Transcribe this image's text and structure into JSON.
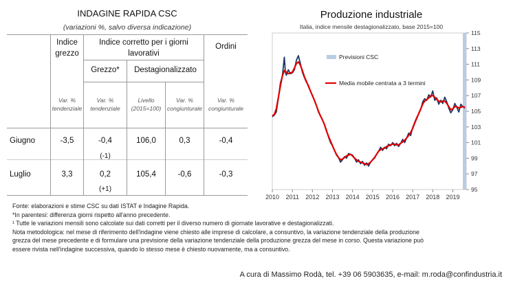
{
  "table": {
    "title": "INDAGINE RAPIDA CSC",
    "subtitle": "(variazioni %, salvo diversa indicazione)",
    "col_indice_grezzo": "Indice grezzo",
    "col_indice_corretto": "Indice corretto per i giorni lavorativi",
    "col_ordini": "Ordini",
    "sub_grezzo": "Grezzo*",
    "sub_destag": "Destagionalizzato",
    "labels": [
      "Var. % tendenziale",
      "Var. % tendenziale",
      "Livello (2015=100)",
      "Var. % congiunturale",
      "Var. % congiunturale"
    ],
    "rows": [
      {
        "month": "Giugno",
        "values": [
          "-3,5",
          "-0,4",
          "106,0",
          "0,3",
          "-0,4"
        ],
        "diff": "(-1)"
      },
      {
        "month": "Luglio",
        "values": [
          "3,3",
          "0,2",
          "105,4",
          "-0,6",
          "-0,3"
        ],
        "diff": "(+1)"
      }
    ]
  },
  "notes": [
    "Fonte: elaborazioni e stime CSC su dati ISTAT e Indagine Rapida.",
    "*In parentesi: differenza giorni rispetto all'anno precedente.",
    "¹ Tutte le variazioni mensili sono calcolate sui dati corretti per il diverso numero di giornate lavorative e destagionalizzati.",
    "Nota metodologica: nel mese di riferimento dell'indagine viene chiesto alle imprese di calcolare, a consuntivo, la variazione tendenziale della produzione",
    "grezza del mese precedente e di formulare una previsione della variazione tendenziale della produzione grezza del mese in corso. Questa variazione può",
    "essere rivista nell'indagine successiva, quando lo stesso mese è chiesto nuovamente, ma a consuntivo."
  ],
  "credit": "A cura di Massimo Rodà, tel. +39 06 5903635, e-mail: m.roda@confindustria.it",
  "chart_data": {
    "type": "line",
    "title": "Produzione industriale",
    "subtitle": "Italia, indice mensile destagionalizzato, base 2015=100",
    "xlabel": "",
    "ylabel": "",
    "x_ticks": [
      "2010",
      "2011",
      "2012",
      "2013",
      "2014",
      "2015",
      "2016",
      "2017",
      "2018",
      "2019"
    ],
    "y_ticks": [
      "95",
      "97",
      "99",
      "101",
      "103",
      "105",
      "107",
      "109",
      "111",
      "113",
      "115"
    ],
    "ylim": [
      95,
      115
    ],
    "xlim": [
      2010.0,
      2019.67
    ],
    "legend": [
      "Previsioni CSC",
      "Media mobile centrata a 3 termini"
    ],
    "colors": {
      "index": "#1f3864",
      "moving_average": "#e00000",
      "forecast": "#b8cce4"
    },
    "forecast_period": [
      2019.5,
      2019.67
    ],
    "series": [
      {
        "name": "Indice",
        "anchors": [
          [
            2010.0,
            104.3
          ],
          [
            2010.1,
            104.5
          ],
          [
            2010.2,
            104.9
          ],
          [
            2010.3,
            106.6
          ],
          [
            2010.4,
            108.6
          ],
          [
            2010.5,
            109.5
          ],
          [
            2010.6,
            111.9
          ],
          [
            2010.65,
            110.0
          ],
          [
            2010.7,
            109.6
          ],
          [
            2010.8,
            110.3
          ],
          [
            2010.9,
            109.8
          ],
          [
            2011.0,
            109.9
          ],
          [
            2011.1,
            110.3
          ],
          [
            2011.2,
            111.5
          ],
          [
            2011.3,
            112.1
          ],
          [
            2011.4,
            111.1
          ],
          [
            2011.5,
            110.0
          ],
          [
            2011.6,
            109.3
          ],
          [
            2011.7,
            108.7
          ],
          [
            2011.8,
            108.3
          ],
          [
            2011.9,
            107.6
          ],
          [
            2012.0,
            107.0
          ],
          [
            2012.1,
            106.4
          ],
          [
            2012.2,
            105.7
          ],
          [
            2012.3,
            104.9
          ],
          [
            2012.4,
            104.4
          ],
          [
            2012.5,
            103.9
          ],
          [
            2012.6,
            103.3
          ],
          [
            2012.7,
            102.6
          ],
          [
            2012.8,
            101.7
          ],
          [
            2012.9,
            101.0
          ],
          [
            2013.0,
            100.6
          ],
          [
            2013.1,
            100.0
          ],
          [
            2013.2,
            99.4
          ],
          [
            2013.3,
            99.1
          ],
          [
            2013.4,
            98.5
          ],
          [
            2013.5,
            98.8
          ],
          [
            2013.6,
            99.2
          ],
          [
            2013.7,
            99.0
          ],
          [
            2013.8,
            99.6
          ],
          [
            2013.9,
            99.5
          ],
          [
            2014.0,
            99.4
          ],
          [
            2014.1,
            99.0
          ],
          [
            2014.2,
            98.5
          ],
          [
            2014.3,
            98.8
          ],
          [
            2014.4,
            98.3
          ],
          [
            2014.5,
            98.6
          ],
          [
            2014.6,
            98.1
          ],
          [
            2014.7,
            98.4
          ],
          [
            2014.8,
            98.0
          ],
          [
            2014.9,
            98.5
          ],
          [
            2015.0,
            98.8
          ],
          [
            2015.1,
            99.0
          ],
          [
            2015.2,
            99.5
          ],
          [
            2015.3,
            99.9
          ],
          [
            2015.4,
            100.4
          ],
          [
            2015.5,
            100.0
          ],
          [
            2015.6,
            100.4
          ],
          [
            2015.7,
            100.2
          ],
          [
            2015.8,
            100.8
          ],
          [
            2015.9,
            100.6
          ],
          [
            2016.0,
            101.0
          ],
          [
            2016.1,
            100.6
          ],
          [
            2016.2,
            100.9
          ],
          [
            2016.3,
            100.5
          ],
          [
            2016.4,
            100.9
          ],
          [
            2016.5,
            101.4
          ],
          [
            2016.6,
            101.0
          ],
          [
            2016.7,
            101.6
          ],
          [
            2016.8,
            102.2
          ],
          [
            2016.9,
            101.9
          ],
          [
            2017.0,
            102.9
          ],
          [
            2017.1,
            103.6
          ],
          [
            2017.2,
            104.2
          ],
          [
            2017.3,
            104.7
          ],
          [
            2017.4,
            105.2
          ],
          [
            2017.5,
            106.2
          ],
          [
            2017.6,
            106.6
          ],
          [
            2017.7,
            106.4
          ],
          [
            2017.8,
            107.1
          ],
          [
            2017.9,
            106.8
          ],
          [
            2018.0,
            107.6
          ],
          [
            2018.1,
            106.4
          ],
          [
            2018.2,
            106.7
          ],
          [
            2018.3,
            105.9
          ],
          [
            2018.4,
            106.4
          ],
          [
            2018.5,
            106.0
          ],
          [
            2018.6,
            106.8
          ],
          [
            2018.7,
            106.2
          ],
          [
            2018.8,
            105.4
          ],
          [
            2018.9,
            104.8
          ],
          [
            2019.0,
            105.2
          ],
          [
            2019.1,
            106.0
          ],
          [
            2019.2,
            105.5
          ],
          [
            2019.3,
            104.9
          ],
          [
            2019.4,
            105.9
          ],
          [
            2019.5,
            105.6
          ],
          [
            2019.6,
            105.4
          ]
        ]
      },
      {
        "name": "Media mobile centrata a 3 termini",
        "anchors": [
          [
            2010.0,
            104.4
          ],
          [
            2010.1,
            104.6
          ],
          [
            2010.2,
            105.3
          ],
          [
            2010.3,
            106.7
          ],
          [
            2010.4,
            108.2
          ],
          [
            2010.5,
            109.5
          ],
          [
            2010.6,
            110.2
          ],
          [
            2010.7,
            110.0
          ],
          [
            2010.8,
            109.8
          ],
          [
            2010.9,
            109.9
          ],
          [
            2011.0,
            110.0
          ],
          [
            2011.1,
            110.5
          ],
          [
            2011.2,
            111.1
          ],
          [
            2011.3,
            111.3
          ],
          [
            2011.4,
            110.9
          ],
          [
            2011.5,
            110.2
          ],
          [
            2011.6,
            109.4
          ],
          [
            2011.7,
            108.8
          ],
          [
            2011.8,
            108.2
          ],
          [
            2011.9,
            107.6
          ],
          [
            2012.0,
            107.0
          ],
          [
            2012.1,
            106.4
          ],
          [
            2012.2,
            105.7
          ],
          [
            2012.3,
            105.0
          ],
          [
            2012.4,
            104.4
          ],
          [
            2012.5,
            103.9
          ],
          [
            2012.6,
            103.3
          ],
          [
            2012.7,
            102.5
          ],
          [
            2012.8,
            101.8
          ],
          [
            2012.9,
            101.2
          ],
          [
            2013.0,
            100.6
          ],
          [
            2013.1,
            100.0
          ],
          [
            2013.2,
            99.5
          ],
          [
            2013.3,
            99.1
          ],
          [
            2013.4,
            98.8
          ],
          [
            2013.5,
            98.9
          ],
          [
            2013.6,
            99.1
          ],
          [
            2013.7,
            99.3
          ],
          [
            2013.8,
            99.4
          ],
          [
            2013.9,
            99.5
          ],
          [
            2014.0,
            99.3
          ],
          [
            2014.1,
            99.0
          ],
          [
            2014.2,
            98.8
          ],
          [
            2014.3,
            98.6
          ],
          [
            2014.4,
            98.5
          ],
          [
            2014.5,
            98.4
          ],
          [
            2014.6,
            98.3
          ],
          [
            2014.7,
            98.2
          ],
          [
            2014.8,
            98.3
          ],
          [
            2014.9,
            98.5
          ],
          [
            2015.0,
            98.8
          ],
          [
            2015.1,
            99.1
          ],
          [
            2015.2,
            99.5
          ],
          [
            2015.3,
            99.9
          ],
          [
            2015.4,
            100.1
          ],
          [
            2015.5,
            100.2
          ],
          [
            2015.6,
            100.3
          ],
          [
            2015.7,
            100.5
          ],
          [
            2015.8,
            100.6
          ],
          [
            2015.9,
            100.7
          ],
          [
            2016.0,
            100.8
          ],
          [
            2016.1,
            100.8
          ],
          [
            2016.2,
            100.7
          ],
          [
            2016.3,
            100.7
          ],
          [
            2016.4,
            100.9
          ],
          [
            2016.5,
            101.1
          ],
          [
            2016.6,
            101.3
          ],
          [
            2016.7,
            101.6
          ],
          [
            2016.8,
            101.9
          ],
          [
            2016.9,
            102.3
          ],
          [
            2017.0,
            102.8
          ],
          [
            2017.1,
            103.5
          ],
          [
            2017.2,
            104.1
          ],
          [
            2017.3,
            104.7
          ],
          [
            2017.4,
            105.3
          ],
          [
            2017.5,
            105.9
          ],
          [
            2017.6,
            106.3
          ],
          [
            2017.7,
            106.5
          ],
          [
            2017.8,
            106.7
          ],
          [
            2017.9,
            107.0
          ],
          [
            2018.0,
            107.0
          ],
          [
            2018.1,
            106.8
          ],
          [
            2018.2,
            106.5
          ],
          [
            2018.3,
            106.3
          ],
          [
            2018.4,
            106.2
          ],
          [
            2018.5,
            106.3
          ],
          [
            2018.6,
            106.3
          ],
          [
            2018.7,
            106.0
          ],
          [
            2018.8,
            105.6
          ],
          [
            2018.9,
            105.2
          ],
          [
            2019.0,
            105.3
          ],
          [
            2019.1,
            105.6
          ],
          [
            2019.2,
            105.6
          ],
          [
            2019.3,
            105.4
          ],
          [
            2019.4,
            105.5
          ],
          [
            2019.5,
            105.6
          ],
          [
            2019.6,
            105.5
          ]
        ]
      }
    ]
  }
}
